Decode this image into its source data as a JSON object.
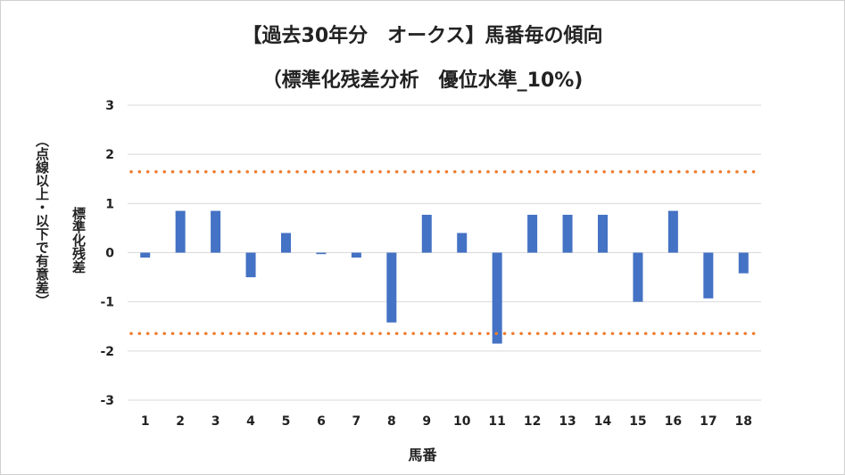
{
  "chart_data": {
    "type": "bar",
    "title": "【過去30年分　オークス】馬番毎の傾向",
    "subtitle": "（標準化残差分析　優位水準_10%)",
    "xlabel": "馬番",
    "ylabel": "標準化残差",
    "ylabel_note": "（点線以上・以下で有意差）",
    "categories": [
      "1",
      "2",
      "3",
      "4",
      "5",
      "6",
      "7",
      "8",
      "9",
      "10",
      "11",
      "12",
      "13",
      "14",
      "15",
      "16",
      "17",
      "18"
    ],
    "values": [
      -0.1,
      0.85,
      0.85,
      -0.5,
      0.4,
      -0.03,
      -0.1,
      -1.42,
      0.77,
      0.4,
      -1.85,
      0.77,
      0.77,
      0.77,
      -1.0,
      0.85,
      -0.93,
      -0.42
    ],
    "ylim": [
      -3,
      3
    ],
    "yticks": [
      "3",
      "2",
      "1",
      "0",
      "-1",
      "-2",
      "-3"
    ],
    "threshold": 1.645,
    "colors": {
      "bar": "#4472c4",
      "threshold": "#ed7d31",
      "grid": "#d9d9d9"
    },
    "grid": true,
    "legend": "none"
  }
}
